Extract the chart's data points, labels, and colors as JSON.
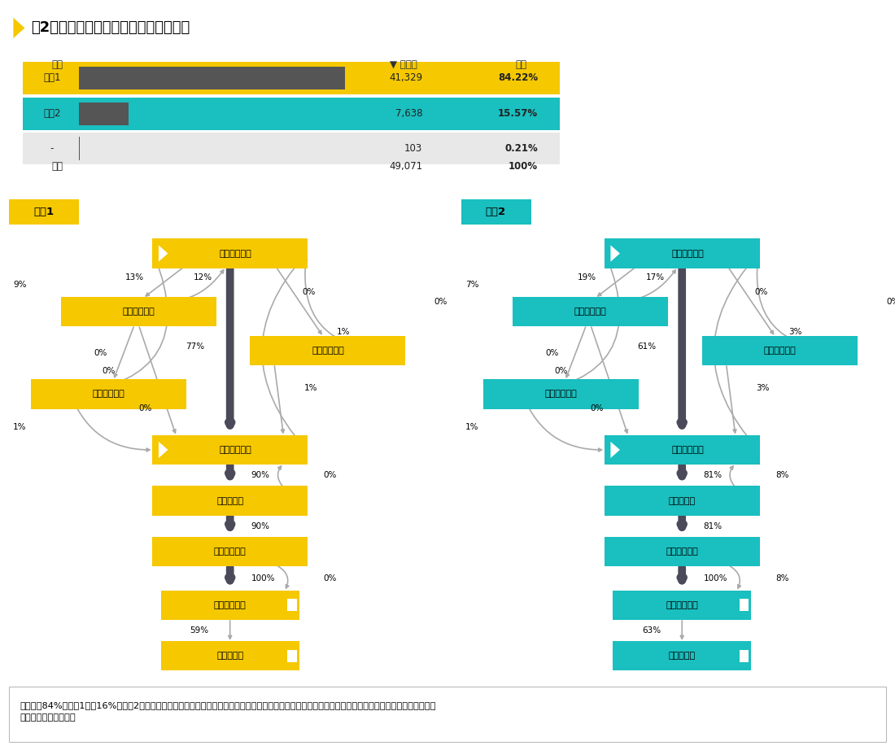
{
  "title": "図2　工場ごとのフローチャートの比較",
  "bar_data": [
    {
      "label": "工場1",
      "value": "41,329",
      "pct": "84.22%",
      "bar_color": "#F5C800",
      "dark_bar": "#555555",
      "bar_fill": 0.84
    },
    {
      "label": "工場2",
      "value": "7,638",
      "pct": "15.57%",
      "bar_color": "#1ABFBF",
      "dark_bar": "#555555",
      "bar_fill": 0.156
    },
    {
      "label": "-",
      "value": "103",
      "pct": "0.21%",
      "bar_color": "#E8E8E8",
      "dark_bar": "#555555",
      "bar_fill": 0.002
    }
  ],
  "col_headers": [
    "工場",
    "▼ 発注額",
    "割合"
  ],
  "total_label": "合計",
  "total_value": "49,071",
  "total_pct": "100%",
  "f1_label": "工場1",
  "f2_label": "工場2",
  "f1_color": "#F5C800",
  "f2_color": "#1ABFBF",
  "dark_arrow": "#4A4A5A",
  "thin_arrow": "#AAAAAA",
  "node_texts": {
    "oc": "注文書の作成",
    "oa": "注文書の承認",
    "och": "注文書の変更",
    "oj": "注文書の却下",
    "ir": "請求書の受領",
    "gc": "物品の検収",
    "ip": "請求書の転記",
    "ipay": "請求書の支払",
    "pp": "支払の転記"
  },
  "f1_pcts": {
    "oc_ir": "77%",
    "ir_gc": "90%",
    "gc_ip": "90%",
    "ip_ipay": "100%",
    "oc_oa": "13%",
    "oa_oc": "12%",
    "oa_ir": "0%",
    "oa_oj": "0%",
    "oc_och": "0%",
    "och_ir": "1%",
    "och_oc": "0%",
    "oj_oc": "9%",
    "oj_ir": "1%",
    "oj_gc": "0%",
    "ir_oc": "1%",
    "gc_ir": "0%",
    "ip_loop": "0%",
    "ipay_pp": "59%"
  },
  "f2_pcts": {
    "oc_ir": "61%",
    "ir_gc": "81%",
    "gc_ip": "81%",
    "ip_ipay": "100%",
    "oc_oa": "19%",
    "oa_oc": "17%",
    "oa_ir": "0%",
    "oa_oj": "0%",
    "oc_och": "0%",
    "och_ir": "3%",
    "och_oc": "0%",
    "oj_oc": "7%",
    "oj_ir": "1%",
    "oj_gc": "0%",
    "ir_oc": "3%",
    "gc_ir": "8%",
    "ip_loop": "8%",
    "ipay_pp": "63%"
  },
  "footnote": "取引の顂84%が工場1、硌16%が工場2で発注されていることが分かります。フローの構成割合が若干異なるものの、どちらの工場もフローチャートの形が同\nじことが分かります。"
}
